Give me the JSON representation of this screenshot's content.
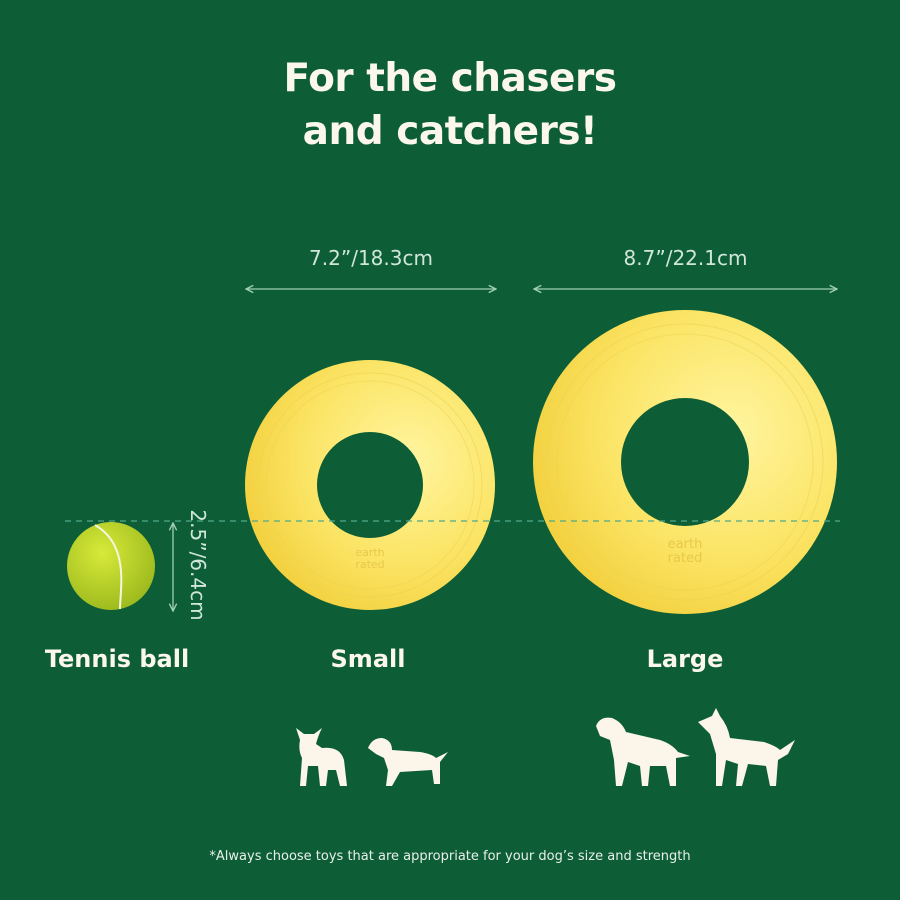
{
  "title": {
    "line1": "For the chasers",
    "line2": "and catchers!"
  },
  "dimensions": {
    "small": "7.2”/18.3cm",
    "large": "8.7”/22.1cm",
    "tennis_ball": "2.5”/6.4cm"
  },
  "labels": {
    "tennis_ball": "Tennis ball",
    "small": "Small",
    "large": "Large"
  },
  "logo_text": "earth rated",
  "footnote": "*Always choose toys that are appropriate for your dog’s size and strength",
  "colors": {
    "background": "#0d5e37",
    "ring": "#fbe56a",
    "ball": "#c5dc2a",
    "text": "#fbf7ec"
  }
}
